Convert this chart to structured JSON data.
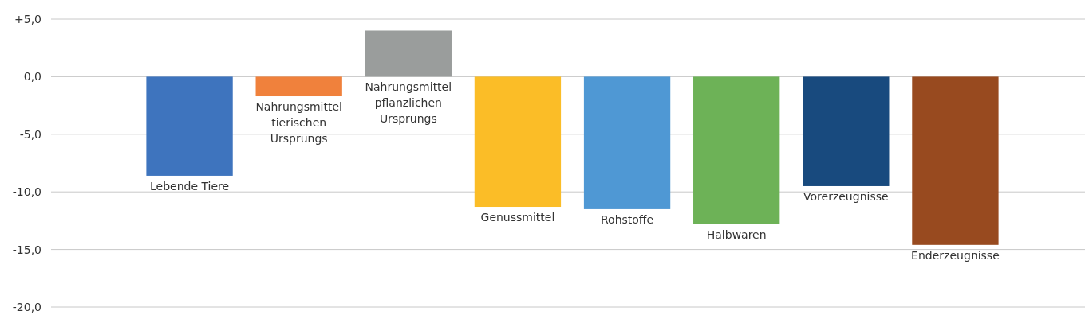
{
  "chart_data": {
    "type": "bar",
    "categories": [
      "Lebende Tiere",
      "Nahrungsmittel tierischen Ursprungs",
      "Nahrungsmittel pflanzlichen Ursprungs",
      "Genussmittel",
      "Rohstoffe",
      "Halbwaren",
      "Vorerzeugnisse",
      "Enderzeugnisse"
    ],
    "values": [
      -8.6,
      -1.7,
      4.0,
      -11.3,
      -11.5,
      -12.8,
      -9.5,
      -14.6
    ],
    "colors": [
      "#3e74be",
      "#f0813c",
      "#9a9d9c",
      "#fbbd27",
      "#4f98d4",
      "#6db257",
      "#184a7e",
      "#984a1f"
    ],
    "ylim": [
      -20,
      5
    ],
    "yticks": [
      {
        "value": 5,
        "label": "+5,0"
      },
      {
        "value": 0,
        "label": "0,0"
      },
      {
        "value": -5,
        "label": "-5,0"
      },
      {
        "value": -10,
        "label": "-10,0"
      },
      {
        "value": -15,
        "label": "-15,0"
      },
      {
        "value": -20,
        "label": "-20,0"
      }
    ],
    "grid": "y"
  }
}
